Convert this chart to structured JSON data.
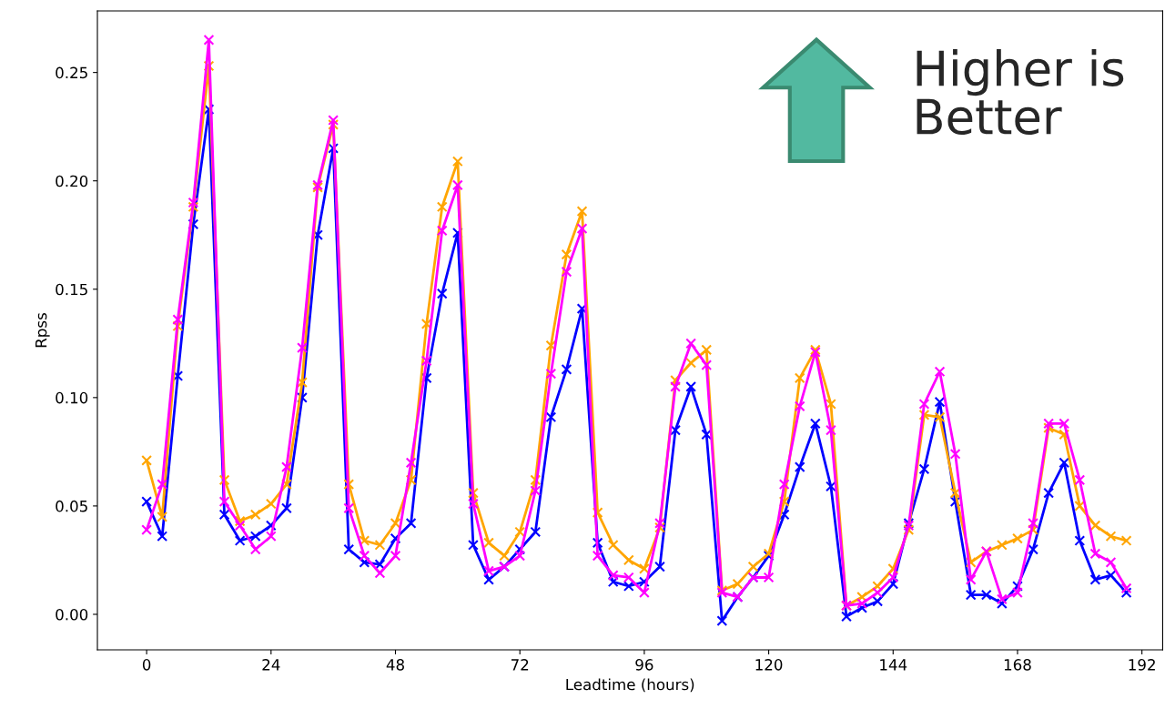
{
  "chart_data": {
    "type": "line",
    "xlabel": "Leadtime (hours)",
    "ylabel": "Rpss",
    "marker": "cross",
    "grid": false,
    "x": [
      0,
      3,
      6,
      9,
      12,
      15,
      18,
      21,
      24,
      27,
      30,
      33,
      36,
      39,
      42,
      45,
      48,
      51,
      54,
      57,
      60,
      63,
      66,
      69,
      72,
      75,
      78,
      81,
      84,
      87,
      90,
      93,
      96,
      99,
      102,
      105,
      108,
      111,
      114,
      117,
      120,
      123,
      126,
      129,
      132,
      135,
      138,
      141,
      144,
      147,
      150,
      153,
      156,
      159,
      162,
      165,
      168,
      171,
      174,
      177,
      180,
      183,
      186,
      189
    ],
    "xlim": [
      -9.5,
      196
    ],
    "xticks": [
      0,
      24,
      48,
      72,
      96,
      120,
      144,
      168,
      192
    ],
    "ylim": [
      -0.0164,
      0.2784
    ],
    "yticks": [
      {
        "value": 0,
        "label": "0.00"
      },
      {
        "value": 0.05,
        "label": "0.05"
      },
      {
        "value": 0.1,
        "label": "0.10"
      },
      {
        "value": 0.15,
        "label": "0.15"
      },
      {
        "value": 0.2,
        "label": "0.20"
      },
      {
        "value": 0.25,
        "label": "0.25"
      }
    ],
    "series": [
      {
        "color": "#0000ff",
        "values": [
          0.052,
          0.036,
          0.11,
          0.18,
          0.233,
          0.046,
          0.034,
          0.036,
          0.041,
          0.049,
          0.1,
          0.175,
          0.215,
          0.03,
          0.024,
          0.023,
          0.035,
          0.042,
          0.109,
          0.148,
          0.176,
          0.032,
          0.016,
          0.022,
          0.03,
          0.038,
          0.091,
          0.113,
          0.141,
          0.033,
          0.015,
          0.013,
          0.015,
          0.022,
          0.085,
          0.105,
          0.083,
          -0.003,
          0.008,
          0.017,
          0.027,
          0.046,
          0.068,
          0.088,
          0.059,
          -0.001,
          0.003,
          0.006,
          0.014,
          0.042,
          0.067,
          0.098,
          0.052,
          0.009,
          0.009,
          0.005,
          0.013,
          0.03,
          0.056,
          0.07,
          0.034,
          0.016,
          0.018,
          0.01
        ]
      },
      {
        "color": "#ffa500",
        "values": [
          0.071,
          0.045,
          0.133,
          0.188,
          0.253,
          0.062,
          0.043,
          0.046,
          0.051,
          0.06,
          0.107,
          0.197,
          0.226,
          0.06,
          0.034,
          0.032,
          0.042,
          0.062,
          0.134,
          0.188,
          0.209,
          0.056,
          0.033,
          0.027,
          0.038,
          0.062,
          0.124,
          0.166,
          0.186,
          0.047,
          0.032,
          0.025,
          0.021,
          0.04,
          0.108,
          0.116,
          0.122,
          0.011,
          0.014,
          0.022,
          0.028,
          0.052,
          0.109,
          0.122,
          0.097,
          0.004,
          0.008,
          0.013,
          0.021,
          0.039,
          0.092,
          0.091,
          0.056,
          0.024,
          0.029,
          0.032,
          0.035,
          0.039,
          0.086,
          0.083,
          0.05,
          0.041,
          0.036,
          0.034
        ]
      },
      {
        "color": "#ff00ff",
        "values": [
          0.039,
          0.06,
          0.136,
          0.19,
          0.265,
          0.052,
          0.041,
          0.03,
          0.036,
          0.068,
          0.123,
          0.198,
          0.228,
          0.049,
          0.027,
          0.019,
          0.027,
          0.07,
          0.117,
          0.177,
          0.198,
          0.051,
          0.02,
          0.022,
          0.027,
          0.057,
          0.111,
          0.158,
          0.178,
          0.027,
          0.018,
          0.017,
          0.01,
          0.042,
          0.105,
          0.125,
          0.115,
          0.01,
          0.008,
          0.017,
          0.017,
          0.06,
          0.096,
          0.121,
          0.085,
          0.004,
          0.005,
          0.01,
          0.017,
          0.041,
          0.097,
          0.112,
          0.074,
          0.016,
          0.029,
          0.007,
          0.01,
          0.042,
          0.088,
          0.088,
          0.062,
          0.028,
          0.024,
          0.012
        ]
      }
    ],
    "annotations": [
      "Higher is\nBetter"
    ]
  }
}
